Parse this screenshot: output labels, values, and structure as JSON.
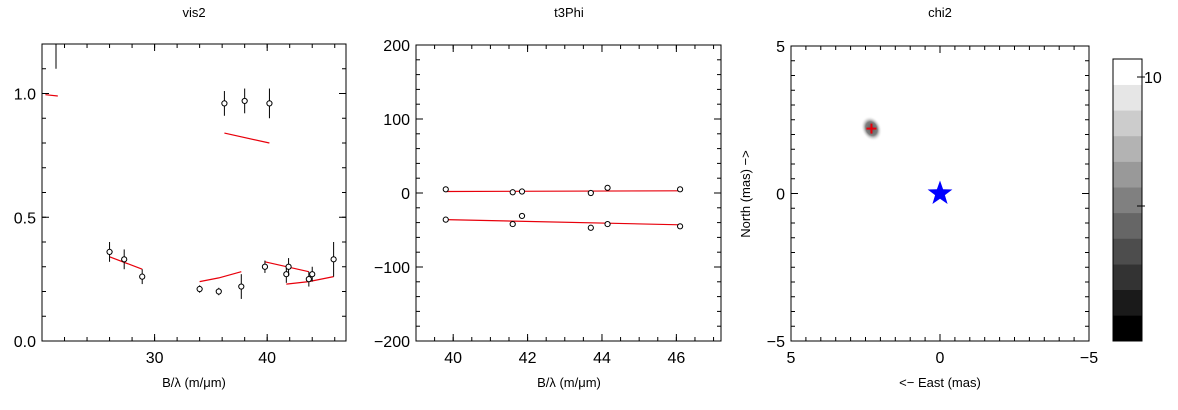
{
  "chart_data": [
    {
      "type": "scatter",
      "title": "vis2",
      "xlabel": "B/λ (m/μm)",
      "ylabel": "",
      "xlim": [
        20,
        47
      ],
      "ylim": [
        0.0,
        1.2
      ],
      "xticks": [
        30,
        40
      ],
      "yticks": [
        0.0,
        0.5,
        1.0
      ],
      "ytick_labels": [
        "0.0",
        "0.5",
        "1.0"
      ],
      "grid": false,
      "series": [
        {
          "kind": "observed",
          "x": [
            26.0,
            27.3,
            28.9,
            34.0,
            35.7,
            36.2,
            37.7,
            38.0,
            39.8,
            40.2,
            41.7,
            41.9,
            43.7,
            44.0,
            45.9
          ],
          "y": [
            0.36,
            0.33,
            0.26,
            0.21,
            0.2,
            0.96,
            0.22,
            0.97,
            0.3,
            0.96,
            0.27,
            0.3,
            0.25,
            0.27,
            0.33
          ],
          "err": [
            0.04,
            0.04,
            0.03,
            0.015,
            0.015,
            0.05,
            0.05,
            0.05,
            0.025,
            0.06,
            0.035,
            0.035,
            0.03,
            0.03,
            0.07
          ]
        },
        {
          "kind": "model",
          "color": "#e8000b",
          "segments": [
            [
              [
                20.3,
                0.995
              ],
              [
                21.4,
                0.99
              ]
            ],
            [
              [
                26.0,
                0.34
              ],
              [
                28.9,
                0.29
              ]
            ],
            [
              [
                34.0,
                0.24
              ],
              [
                35.7,
                0.255
              ],
              [
                37.7,
                0.28
              ]
            ],
            [
              [
                36.2,
                0.84
              ],
              [
                40.2,
                0.8
              ]
            ],
            [
              [
                39.8,
                0.32
              ],
              [
                43.7,
                0.28
              ]
            ],
            [
              [
                41.7,
                0.23
              ],
              [
                43.7,
                0.24
              ],
              [
                45.9,
                0.26
              ]
            ]
          ]
        }
      ],
      "extra_errorbar": {
        "x": 20.0,
        "y": 1.17,
        "err": 0.07
      }
    },
    {
      "type": "scatter",
      "title": "t3Phi",
      "xlabel": "B/λ (m/μm)",
      "ylabel": "",
      "xlim": [
        39,
        47.2
      ],
      "ylim": [
        -200,
        200
      ],
      "xticks": [
        40,
        42,
        44,
        46
      ],
      "yticks": [
        -200,
        -100,
        0,
        100,
        200
      ],
      "ytick_labels": [
        "−200",
        "−100",
        "0",
        "100",
        "200"
      ],
      "grid": false,
      "series": [
        {
          "kind": "observed",
          "x": [
            39.8,
            41.6,
            41.85,
            43.7,
            44.15,
            46.1,
            39.8,
            41.6,
            41.85,
            43.7,
            44.15,
            46.1
          ],
          "y": [
            5,
            1,
            2,
            0,
            7,
            5,
            -36,
            -42,
            -31,
            -47,
            -42,
            -45
          ]
        },
        {
          "kind": "model",
          "color": "#e8000b",
          "segments": [
            [
              [
                39.8,
                2
              ],
              [
                46.1,
                3
              ]
            ],
            [
              [
                39.8,
                -36
              ],
              [
                46.1,
                -43
              ]
            ]
          ]
        }
      ]
    },
    {
      "type": "heatmap",
      "title": "chi2",
      "xlabel": "<−  East (mas)",
      "ylabel": "North (mas)  −>",
      "xlim": [
        5,
        -5
      ],
      "ylim": [
        -5,
        5
      ],
      "xticks": [
        5,
        0,
        -5
      ],
      "xtick_labels": [
        "5",
        "0",
        "−5"
      ],
      "yticks": [
        -5,
        0,
        5
      ],
      "ytick_labels": [
        "−5",
        "0",
        "5"
      ],
      "minimum_marker": {
        "x": 2.3,
        "y": 2.2,
        "symbol": "+",
        "color": "#e8000b"
      },
      "star_marker": {
        "x": 0,
        "y": 0,
        "symbol": "star",
        "color": "#0000ff"
      },
      "blob_color": "#808080",
      "colorbar": {
        "levels": [
          "#000000",
          "#1a1a1a",
          "#333333",
          "#4d4d4d",
          "#666666",
          "#808080",
          "#999999",
          "#b3b3b3",
          "#cccccc",
          "#e6e6e6",
          "#ffffff"
        ],
        "tick_labels": [
          "10"
        ]
      }
    }
  ]
}
